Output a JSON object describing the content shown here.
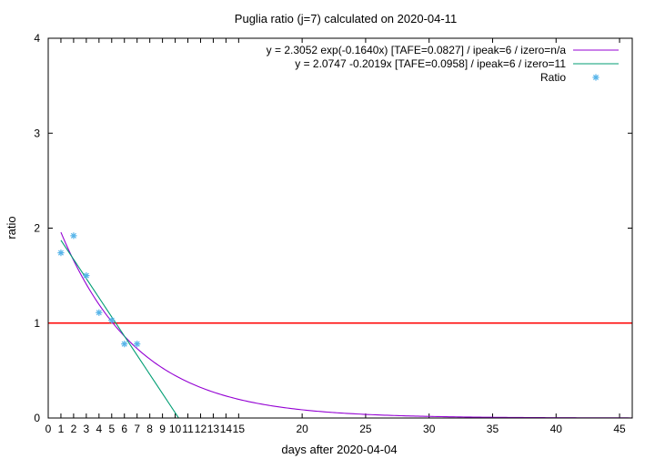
{
  "chart_data": {
    "type": "line",
    "title": "Puglia ratio (j=7) calculated on 2020-04-11",
    "xlabel": "days after 2020-04-04",
    "ylabel": "ratio",
    "xlim": [
      0,
      46
    ],
    "ylim": [
      0,
      4
    ],
    "x_ticks": [
      0,
      1,
      2,
      3,
      4,
      5,
      6,
      7,
      8,
      9,
      10,
      11,
      12,
      13,
      14,
      15,
      20,
      25,
      30,
      35,
      40,
      45
    ],
    "y_ticks": [
      0,
      1,
      2,
      3,
      4
    ],
    "grid": false,
    "legend_position": "top-right",
    "reference_line": {
      "y": 1,
      "color": "#ff0000"
    },
    "series": [
      {
        "name": "y = 2.3052 exp(-0.1640x)  [TAFE=0.0827] / ipeak=6 / izero=n/a",
        "kind": "exp",
        "a": 2.3052,
        "b": -0.164,
        "x_range": [
          1,
          46
        ],
        "color": "#9400d3"
      },
      {
        "name": "y = 2.0747 -0.2019x  [TAFE=0.0958] / ipeak=6 / izero=11",
        "kind": "linear",
        "a": 2.0747,
        "b": -0.2019,
        "x_range": [
          1,
          10.28
        ],
        "color": "#009e73"
      },
      {
        "name": "Ratio",
        "kind": "points",
        "marker": "*",
        "color": "#56b4e9",
        "x": [
          1,
          2,
          3,
          4,
          5,
          6,
          7
        ],
        "y": [
          1.74,
          1.92,
          1.5,
          1.11,
          1.03,
          0.78,
          0.78
        ]
      }
    ]
  }
}
